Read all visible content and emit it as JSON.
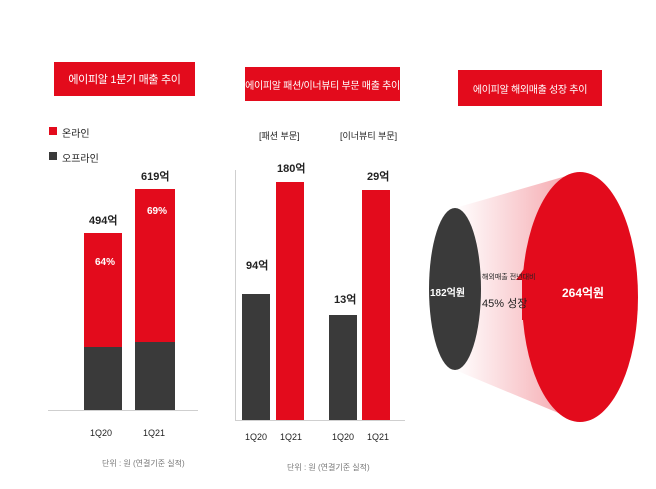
{
  "panel1": {
    "title": "에이피알 1분기 매출 추이",
    "legend": [
      {
        "label": "온라인",
        "color": "#e30b1c"
      },
      {
        "label": "오프라인",
        "color": "#3a3a3a"
      }
    ],
    "unit": "단위 : 원 (연결기준 실적)"
  },
  "panel2": {
    "title": "에이피알 패션/이너뷰티 부문 매출 추이",
    "group_fashion": "[패션 부문]",
    "group_innerbeauty": "[이너뷰티 부문]",
    "unit": "단위 : 원 (연결기준 실적)"
  },
  "panel3": {
    "title": "에이피알 해외매출 성장 추이",
    "left_value": "182억원",
    "right_value": "264억원",
    "growth_caption": "해외매출 전년대비",
    "growth_text": "45% 성장"
  },
  "chart_data": [
    {
      "type": "bar",
      "title": "에이피알 1분기 매출 추이",
      "categories": [
        "1Q20",
        "1Q21"
      ],
      "series": [
        {
          "name": "오프라인",
          "values": [
            177,
            192
          ]
        },
        {
          "name": "온라인",
          "values": [
            317,
            427
          ]
        }
      ],
      "totals": [
        "494억",
        "619억"
      ],
      "online_share": [
        "64%",
        "69%"
      ]
    },
    {
      "type": "bar",
      "title": "[패션 부문]",
      "categories": [
        "1Q20",
        "1Q21"
      ],
      "values": [
        94,
        180
      ],
      "value_labels": [
        "94억",
        "180억"
      ]
    },
    {
      "type": "bar",
      "title": "[이너뷰티 부문]",
      "categories": [
        "1Q20",
        "1Q21"
      ],
      "values": [
        13,
        29
      ],
      "value_labels": [
        "13억",
        "29억"
      ]
    }
  ]
}
